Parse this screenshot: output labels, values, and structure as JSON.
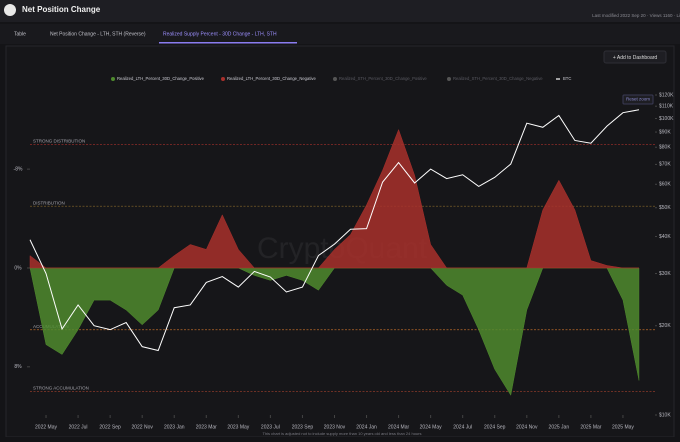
{
  "header": {
    "title": "Net Position Change",
    "meta": "Last modified 2022 Sep 20 · Views 1160 · Li"
  },
  "tabs": [
    "Table",
    "Net Position Change - LTH, STH (Reverse)",
    "Realized Supply Percent - 30D Change - LTH, STH"
  ],
  "active_tab": 2,
  "button": "+ Add to Dashboard",
  "reset_zoom": "Reset zoom",
  "watermark": "CryptoQuant",
  "chart_data": {
    "type": "area",
    "footnote": "This chart is adjusted not to include supply more than 10 years old and less than 24 hours",
    "x": [
      "2022-04",
      "2022-05",
      "2022-06",
      "2022-07",
      "2022-08",
      "2022-09",
      "2022-10",
      "2022-11",
      "2022-12",
      "2023-01",
      "2023-02",
      "2023-03",
      "2023-04",
      "2023-05",
      "2023-06",
      "2023-07",
      "2023-08",
      "2023-09",
      "2023-10",
      "2023-11",
      "2023-12",
      "2024-01",
      "2024-02",
      "2024-03",
      "2024-04",
      "2024-05",
      "2024-06",
      "2024-07",
      "2024-08",
      "2024-09",
      "2024-10",
      "2024-11",
      "2024-12",
      "2025-01",
      "2025-02",
      "2025-03",
      "2025-04",
      "2025-05",
      "2025-06"
    ],
    "xlim": [
      "2022-04",
      "2025-07"
    ],
    "xticks": [
      {
        "value": "2022-05",
        "label": "2022 May"
      },
      {
        "value": "2022-07",
        "label": "2022 Jul"
      },
      {
        "value": "2022-09",
        "label": "2022 Sep"
      },
      {
        "value": "2022-11",
        "label": "2022 Nov"
      },
      {
        "value": "2023-01",
        "label": "2023 Jan"
      },
      {
        "value": "2023-03",
        "label": "2023 Mar"
      },
      {
        "value": "2023-05",
        "label": "2023 May"
      },
      {
        "value": "2023-07",
        "label": "2023 Jul"
      },
      {
        "value": "2023-09",
        "label": "2023 Sep"
      },
      {
        "value": "2023-11",
        "label": "2023 Nov"
      },
      {
        "value": "2024-01",
        "label": "2024 Jan"
      },
      {
        "value": "2024-03",
        "label": "2024 Mar"
      },
      {
        "value": "2024-05",
        "label": "2024 May"
      },
      {
        "value": "2024-07",
        "label": "2024 Jul"
      },
      {
        "value": "2024-09",
        "label": "2024 Sep"
      },
      {
        "value": "2024-11",
        "label": "2024 Nov"
      },
      {
        "value": "2025-01",
        "label": "2025 Jan"
      },
      {
        "value": "2025-03",
        "label": "2025 Mar"
      },
      {
        "value": "2025-05",
        "label": "2025 May"
      }
    ],
    "ylim": [
      11.9,
      -14
    ],
    "yticks": [
      {
        "value": -8,
        "label": "-8%"
      },
      {
        "value": 0,
        "label": "0%"
      },
      {
        "value": 8,
        "label": "8%"
      }
    ],
    "y2lim": [
      10000,
      120000
    ],
    "y2_log": true,
    "y2ticks": [
      {
        "value": 120000,
        "label": "$120K"
      },
      {
        "value": 110000,
        "label": "$110K"
      },
      {
        "value": 100000,
        "label": "$100K"
      },
      {
        "value": 90000,
        "label": "$90K"
      },
      {
        "value": 80000,
        "label": "$80K"
      },
      {
        "value": 70000,
        "label": "$70K"
      },
      {
        "value": 60000,
        "label": "$60K"
      },
      {
        "value": 50000,
        "label": "$50K"
      },
      {
        "value": 40000,
        "label": "$40K"
      },
      {
        "value": 30000,
        "label": "$30K"
      },
      {
        "value": 20000,
        "label": "$20K"
      },
      {
        "value": 10000,
        "label": "$10K"
      }
    ],
    "reference_lines": [
      {
        "value": -10,
        "label": "STRONG DISTRIBUTION",
        "color": "#a8302c"
      },
      {
        "value": -5,
        "label": "DISTRIBUTION",
        "color": "#8a6a2a"
      },
      {
        "value": 5,
        "label": "ACCUMULATION",
        "color": "#b8682a"
      },
      {
        "value": 10,
        "label": "STRONG ACCUMULATION",
        "color": "#8a3a2a"
      }
    ],
    "series": [
      {
        "name": "Realized_LTH_Percent_30D_Change_Positive",
        "color": "#4f8a2e",
        "values": [
          0,
          6.2,
          7.0,
          5,
          2.6,
          2.6,
          3.4,
          4.6,
          3.4,
          0,
          0,
          0,
          0,
          0,
          0.6,
          1,
          0.6,
          1,
          1.8,
          0,
          0,
          0,
          0,
          0,
          0,
          0,
          1.4,
          2.2,
          5,
          8.2,
          10.3,
          3.4,
          0,
          0,
          0,
          0,
          0,
          2.6,
          9.1
        ]
      },
      {
        "name": "Realized_LTH_Percent_30D_Change_Negative",
        "color": "#a8302c",
        "values": [
          -1,
          0,
          0,
          0,
          0,
          0,
          0,
          0,
          0,
          -1,
          -1.9,
          -1.5,
          -4.3,
          -1.5,
          0,
          0,
          0,
          0,
          0,
          -1.5,
          -2.7,
          -5.1,
          -7.9,
          -11.2,
          -7.5,
          -1.9,
          0,
          0,
          0,
          0,
          0,
          0,
          -4.7,
          -7.1,
          -4.7,
          -0.6,
          -0.2,
          0,
          0
        ]
      },
      {
        "name": "BTC",
        "color": "#ffffff",
        "axis": "y2",
        "values": [
          39000,
          30000,
          19500,
          23500,
          20000,
          19400,
          20500,
          17000,
          16500,
          23000,
          23500,
          28000,
          29300,
          27000,
          30500,
          29200,
          26000,
          27000,
          34500,
          37700,
          42300,
          42500,
          61000,
          71000,
          60600,
          67500,
          62700,
          64600,
          59000,
          63300,
          70200,
          96400,
          93400,
          102400,
          84300,
          82500,
          94200,
          104600,
          107000
        ]
      }
    ],
    "hidden_series": [
      {
        "name": "Realized_STH_Percent_30D_Change_Positive",
        "color": "#555555"
      },
      {
        "name": "Realized_STH_Percent_30D_Change_Negative",
        "color": "#555555"
      }
    ]
  }
}
